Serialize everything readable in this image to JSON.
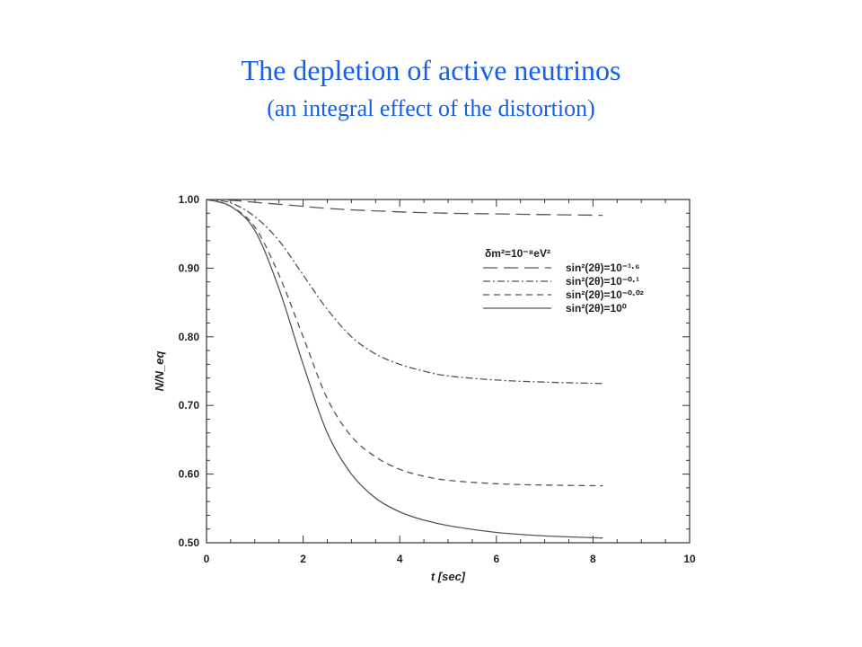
{
  "slide": {
    "title": "The depletion of active neutrinos",
    "subtitle": "(an integral effect of the distortion)"
  },
  "chart_data": {
    "type": "line",
    "title": "",
    "xlabel": "t [sec]",
    "ylabel": "N/N_eq",
    "xlim": [
      0,
      10
    ],
    "ylim": [
      0.5,
      1.0
    ],
    "xticks": [
      "0",
      "2",
      "4",
      "6",
      "8",
      "10"
    ],
    "yticks": [
      "0.50",
      "0.60",
      "0.70",
      "0.80",
      "0.90",
      "1.00"
    ],
    "grid": false,
    "legend": {
      "placement": "upper-right",
      "header": "δm²=10⁻⁸eV²"
    },
    "series": [
      {
        "name": "sin²(2θ)=10⁻¹·⁶",
        "style": "long-dash",
        "color": "#555555",
        "x": [
          0,
          0.5,
          1,
          1.5,
          2,
          2.5,
          3,
          4,
          5,
          6,
          7,
          8.2
        ],
        "y": [
          1.0,
          0.999,
          0.996,
          0.993,
          0.99,
          0.987,
          0.985,
          0.982,
          0.98,
          0.979,
          0.978,
          0.977
        ]
      },
      {
        "name": "sin²(2θ)=10⁻⁰·¹",
        "style": "dash-dot",
        "color": "#555555",
        "x": [
          0,
          0.5,
          1,
          1.5,
          2,
          2.5,
          3,
          3.5,
          4,
          4.5,
          5,
          6,
          7,
          8.2
        ],
        "y": [
          1.0,
          0.995,
          0.975,
          0.94,
          0.89,
          0.84,
          0.8,
          0.775,
          0.76,
          0.75,
          0.743,
          0.737,
          0.734,
          0.732
        ]
      },
      {
        "name": "sin²(2θ)=10⁻⁰·⁰²",
        "style": "dash",
        "color": "#555555",
        "x": [
          0,
          0.5,
          1,
          1.5,
          2,
          2.5,
          3,
          3.5,
          4,
          4.5,
          5,
          6,
          7,
          8.2
        ],
        "y": [
          1.0,
          0.99,
          0.96,
          0.89,
          0.8,
          0.71,
          0.655,
          0.625,
          0.607,
          0.597,
          0.591,
          0.586,
          0.584,
          0.583
        ]
      },
      {
        "name": "sin²(2θ)=10⁰",
        "style": "solid",
        "color": "#555555",
        "x": [
          0,
          0.5,
          1,
          1.5,
          2,
          2.5,
          3,
          3.5,
          4,
          4.5,
          5,
          6,
          7,
          8.2
        ],
        "y": [
          1.0,
          0.99,
          0.955,
          0.87,
          0.76,
          0.66,
          0.6,
          0.565,
          0.545,
          0.533,
          0.525,
          0.515,
          0.51,
          0.507
        ]
      }
    ]
  }
}
